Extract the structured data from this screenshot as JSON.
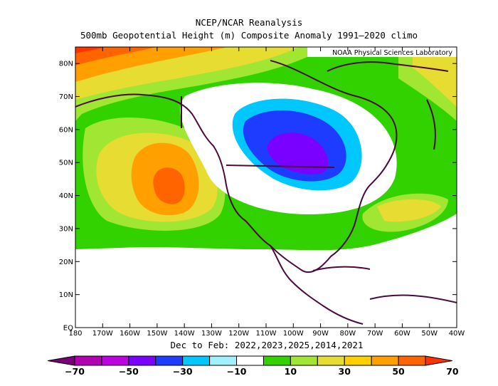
{
  "title": "NCEP/NCAR Reanalysis",
  "subtitle": "500mb Geopotential Height (m) Composite Anomaly 1991–2020 climo",
  "credit": "NOAA Physical Sciences Laboratory",
  "period": "Dec to Feb: 2022,2023,2025,2014,2021",
  "map": {
    "lon_range": [
      -180,
      -40
    ],
    "lat_range": [
      0,
      85
    ],
    "lon_ticks": [
      "180",
      "170W",
      "160W",
      "150W",
      "140W",
      "130W",
      "120W",
      "110W",
      "100W",
      "90W",
      "80W",
      "70W",
      "60W",
      "50W",
      "40W"
    ],
    "lat_ticks": [
      "EQ",
      "10N",
      "20N",
      "30N",
      "40N",
      "50N",
      "60N",
      "70N",
      "80N"
    ]
  },
  "colorbar": {
    "labels": [
      "−70",
      "−50",
      "−30",
      "−10",
      "10",
      "30",
      "50",
      "70"
    ],
    "colors": [
      "#7a007a",
      "#b300b3",
      "#c000e0",
      "#7a00ff",
      "#1e3cff",
      "#00c8ff",
      "#a0f0ff",
      "#ffffff",
      "#32d200",
      "#a0e632",
      "#e6dc32",
      "#ffd000",
      "#ffa000",
      "#ff6400",
      "#ff3200"
    ]
  }
}
